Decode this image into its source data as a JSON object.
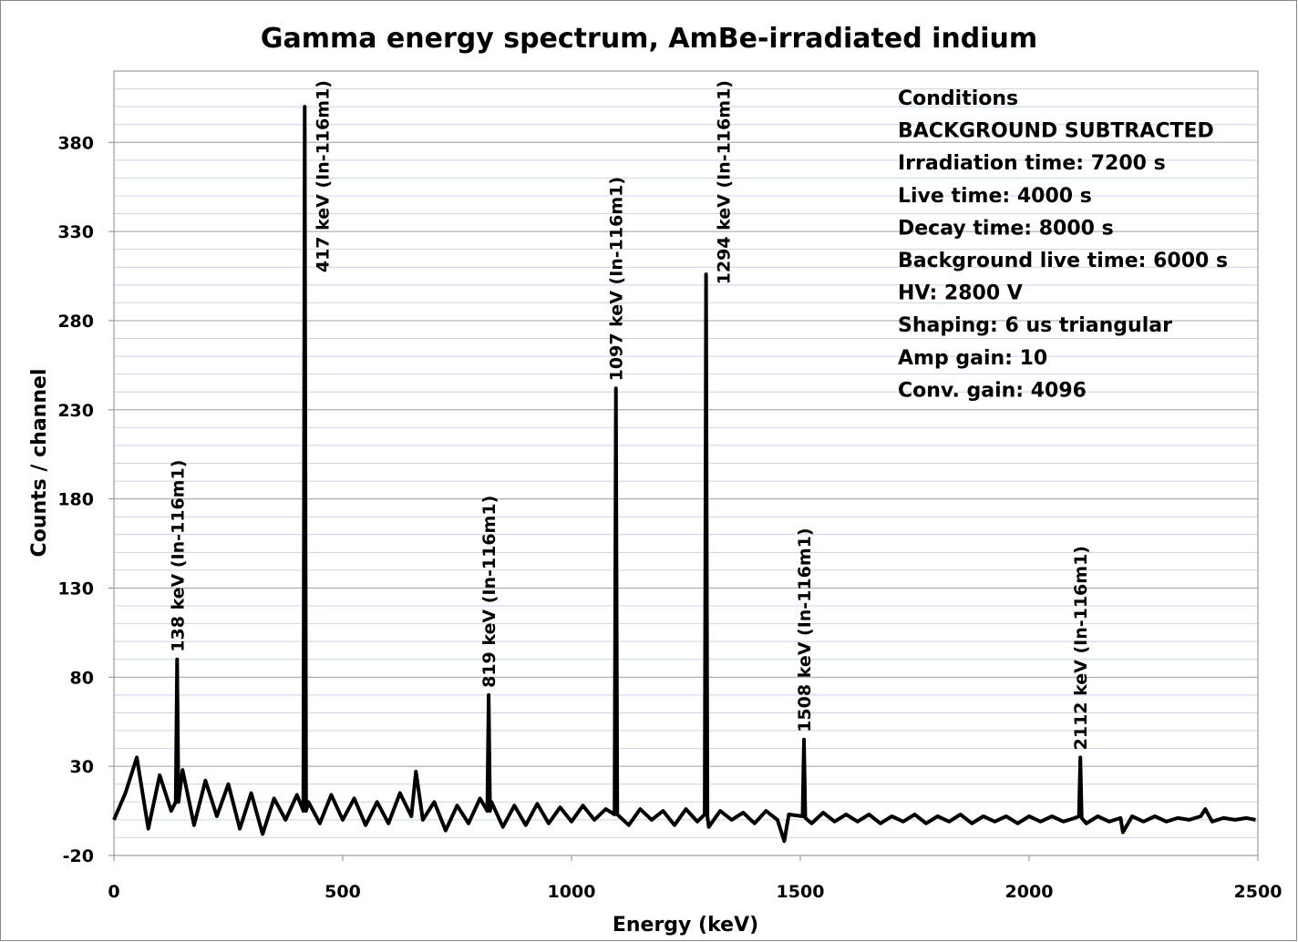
{
  "chart_data": {
    "type": "line",
    "title": "Gamma energy spectrum, AmBe-irradiated indium",
    "x_label": "Energy (keV)",
    "y_label": "Counts / channel",
    "xlim": [
      0,
      2500
    ],
    "xticks": [
      0,
      500,
      1000,
      1500,
      2000,
      2500
    ],
    "ylim": [
      -20,
      420
    ],
    "yticks": [
      -20,
      30,
      80,
      130,
      180,
      230,
      280,
      330,
      380
    ],
    "grid": true,
    "series": [
      {
        "color": "#000000",
        "x": [
          0,
          25,
          50,
          75,
          100,
          125,
          135,
          138,
          141,
          150,
          175,
          200,
          225,
          250,
          275,
          300,
          325,
          350,
          375,
          400,
          414,
          417,
          420,
          425,
          450,
          475,
          500,
          525,
          550,
          575,
          600,
          625,
          650,
          660,
          675,
          700,
          725,
          750,
          775,
          800,
          816,
          819,
          822,
          825,
          850,
          875,
          900,
          925,
          950,
          975,
          1000,
          1025,
          1050,
          1075,
          1094,
          1097,
          1100,
          1125,
          1150,
          1175,
          1200,
          1225,
          1250,
          1275,
          1291,
          1294,
          1297,
          1300,
          1325,
          1350,
          1375,
          1400,
          1425,
          1450,
          1465,
          1475,
          1505,
          1508,
          1511,
          1525,
          1550,
          1575,
          1600,
          1625,
          1650,
          1675,
          1700,
          1725,
          1750,
          1775,
          1800,
          1825,
          1850,
          1875,
          1900,
          1925,
          1950,
          1975,
          2000,
          2025,
          2050,
          2075,
          2100,
          2109,
          2112,
          2115,
          2125,
          2150,
          2175,
          2200,
          2205,
          2225,
          2250,
          2275,
          2300,
          2325,
          2350,
          2375,
          2385,
          2400,
          2425,
          2450,
          2475,
          2495
        ],
        "values": [
          0,
          15,
          35,
          -5,
          25,
          5,
          10,
          90,
          10,
          28,
          -3,
          22,
          2,
          20,
          -5,
          15,
          -8,
          12,
          0,
          14,
          5,
          400,
          5,
          10,
          -2,
          14,
          0,
          12,
          -3,
          10,
          -2,
          15,
          2,
          27,
          0,
          10,
          -6,
          8,
          -2,
          12,
          5,
          70,
          5,
          10,
          -4,
          8,
          -3,
          9,
          -2,
          7,
          -1,
          8,
          0,
          6,
          3,
          242,
          3,
          -3,
          6,
          0,
          5,
          -3,
          6,
          -1,
          3,
          306,
          2,
          -4,
          5,
          0,
          4,
          -2,
          5,
          0,
          -12,
          3,
          2,
          45,
          1,
          -2,
          4,
          -1,
          3,
          -1,
          3,
          -2,
          2,
          -1,
          3,
          -2,
          2,
          -1,
          3,
          -2,
          2,
          -1,
          2,
          -2,
          2,
          -1,
          2,
          -1,
          1,
          2,
          35,
          1,
          -2,
          2,
          -1,
          1,
          -7,
          2,
          -1,
          2,
          -1,
          1,
          0,
          2,
          6,
          -1,
          1,
          0,
          1,
          0
        ]
      }
    ],
    "annotations": [
      {
        "text": "138 keV (In-116m1)",
        "x": 138,
        "y": 90
      },
      {
        "text": "417 keV (In-116m1)",
        "x": 417,
        "y": 400
      },
      {
        "text": "819 keV (In-116m1)",
        "x": 819,
        "y": 70
      },
      {
        "text": "1097 keV (In-116m1)",
        "x": 1097,
        "y": 242
      },
      {
        "text": "1294 keV (In-116m1)",
        "x": 1294,
        "y": 306
      },
      {
        "text": "1508 keV (In-116m1)",
        "x": 1508,
        "y": 45
      },
      {
        "text": "2112 keV (In-116m1)",
        "x": 2112,
        "y": 35
      }
    ],
    "conditions": [
      "Conditions",
      "BACKGROUND SUBTRACTED",
      "Irradiation time: 7200 s",
      "Live time: 4000 s",
      "Decay time: 8000 s",
      "Background live time: 6000 s",
      "HV: 2800 V",
      "Shaping: 6 us triangular",
      "Amp gain: 10",
      "Conv. gain: 4096"
    ]
  }
}
